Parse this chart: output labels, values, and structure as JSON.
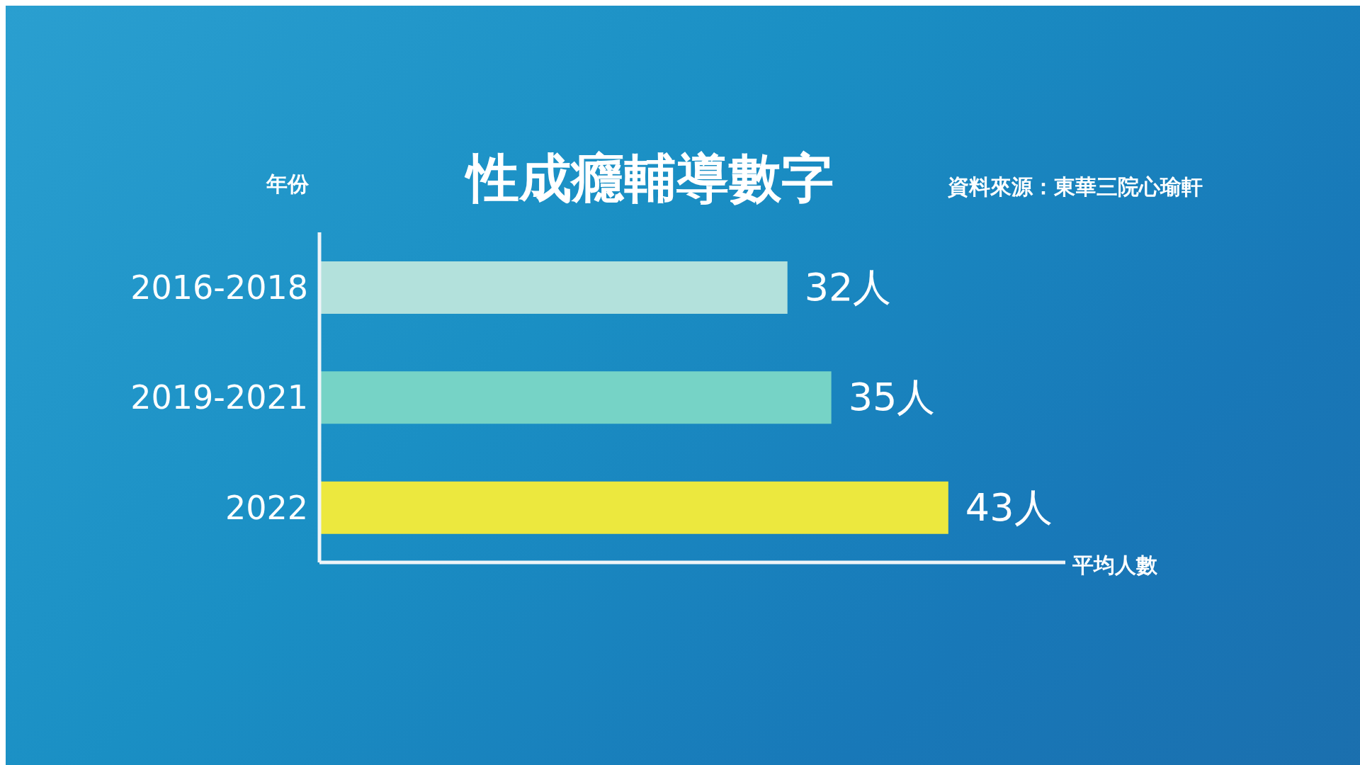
{
  "chart_data": {
    "type": "bar",
    "orientation": "horizontal",
    "title": "性成癮輔導數字",
    "ylabel": "年份",
    "xlabel": "平均人數",
    "annotations": [
      "資料來源：東華三院心瑜軒"
    ],
    "categories": [
      "2016-2018",
      "2019-2021",
      "2022"
    ],
    "values": [
      32,
      35,
      43
    ],
    "colors": [
      "#b3e1dc",
      "#76d3c6",
      "#ece83e"
    ],
    "value_labels": [
      "32人",
      "35人",
      "43人"
    ],
    "xlim": [
      0,
      51
    ],
    "grid": false,
    "legend": false
  }
}
